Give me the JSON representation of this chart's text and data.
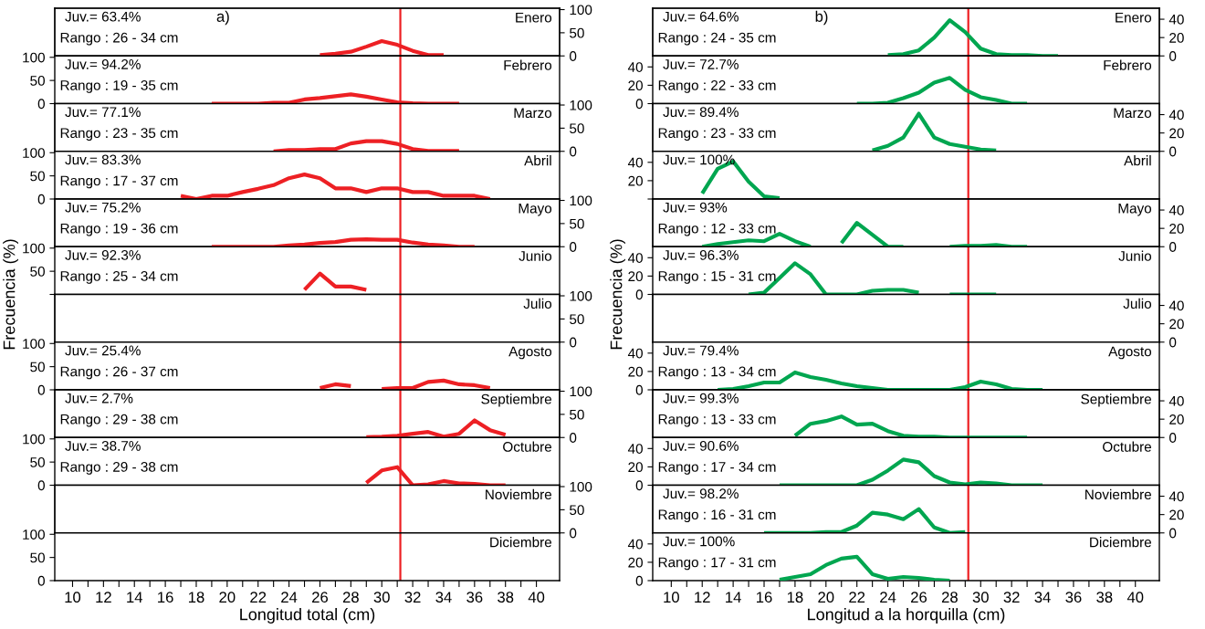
{
  "chart_data": [
    {
      "type": "line",
      "title": "Enero",
      "annotations": [
        "Juv.= 63.4%",
        "Rango : 26 - 34 cm",
        "a)"
      ],
      "x": [
        26,
        27,
        28,
        29,
        30,
        31,
        32,
        33,
        34
      ],
      "series": [
        {
          "color": "#ed2024",
          "axis": "y2",
          "values": [
            2,
            5,
            9,
            20,
            32,
            24,
            11,
            2,
            2
          ]
        }
      ],
      "xlim": [
        8.85,
        41.5
      ],
      "y2lim": [
        0,
        103
      ],
      "y2ticks": [
        0,
        50,
        100
      ],
      "ref_lines": [
        {
          "axis": "x",
          "value": 31.2,
          "color": "#ed2024"
        }
      ],
      "tick_labels": "y"
    },
    {
      "type": "line",
      "title": "Febrero",
      "annotations": [
        "Juv.= 94.2%",
        "Rango : 19 - 35 cm"
      ],
      "x": [
        19,
        20,
        21,
        22,
        23,
        24,
        25,
        26,
        27,
        28,
        29,
        30,
        31,
        32,
        33,
        34,
        35
      ],
      "series": [
        {
          "color": "#ed2024",
          "values": [
            0,
            0,
            0,
            0,
            2,
            2,
            9,
            12,
            16,
            20,
            15,
            9,
            3,
            1,
            0,
            0,
            0
          ]
        }
      ],
      "xlim": [
        8.85,
        41.5
      ],
      "ylim": [
        0,
        103
      ],
      "yticks": [
        0,
        50,
        100
      ],
      "ref_lines": [
        {
          "axis": "x",
          "value": 31.2,
          "color": "#ed2024"
        }
      ],
      "tick_labels": "y"
    },
    {
      "type": "line",
      "title": "Marzo",
      "annotations": [
        "Juv.= 77.1%",
        "Rango : 23 - 35 cm"
      ],
      "x": [
        23,
        24,
        25,
        26,
        27,
        28,
        29,
        30,
        31,
        32,
        33,
        34,
        35
      ],
      "series": [
        {
          "color": "#ed2024",
          "axis": "y2",
          "values": [
            0,
            3,
            3,
            5,
            5,
            17,
            22,
            22,
            16,
            5,
            1,
            1,
            1
          ]
        }
      ],
      "xlim": [
        8.85,
        41.5
      ],
      "y2lim": [
        0,
        103
      ],
      "y2ticks": [
        0,
        50,
        100
      ],
      "ref_lines": [
        {
          "axis": "x",
          "value": 31.2,
          "color": "#ed2024"
        }
      ],
      "tick_labels": "y"
    },
    {
      "type": "line",
      "title": "Abril",
      "annotations": [
        "Juv.= 83.3%",
        "Rango : 17 - 37 cm"
      ],
      "x": [
        17,
        18,
        19,
        20,
        21,
        22,
        23,
        24,
        25,
        26,
        27,
        28,
        29,
        30,
        31,
        32,
        33,
        34,
        35,
        36,
        37
      ],
      "series": [
        {
          "color": "#ed2024",
          "values": [
            7,
            0,
            7,
            7,
            15,
            22,
            30,
            45,
            53,
            45,
            23,
            23,
            15,
            23,
            23,
            15,
            15,
            7,
            7,
            7,
            0
          ]
        }
      ],
      "xlim": [
        8.85,
        41.5
      ],
      "ylim": [
        0,
        103
      ],
      "yticks": [
        0,
        50,
        100
      ],
      "ref_lines": [
        {
          "axis": "x",
          "value": 31.2,
          "color": "#ed2024"
        }
      ],
      "tick_labels": "y"
    },
    {
      "type": "line",
      "title": "Mayo",
      "annotations": [
        "Juv.= 75.2%",
        "Rango : 19 - 36 cm"
      ],
      "x": [
        19,
        20,
        21,
        22,
        23,
        24,
        25,
        26,
        27,
        28,
        29,
        30,
        31,
        32,
        33,
        34,
        35,
        36
      ],
      "series": [
        {
          "color": "#ed2024",
          "axis": "y2",
          "values": [
            0,
            0,
            0,
            0,
            0,
            3,
            5,
            8,
            10,
            15,
            16,
            15,
            15,
            9,
            5,
            3,
            0,
            0
          ]
        }
      ],
      "xlim": [
        8.85,
        41.5
      ],
      "y2lim": [
        0,
        103
      ],
      "y2ticks": [
        0,
        50,
        100
      ],
      "ref_lines": [
        {
          "axis": "x",
          "value": 31.2,
          "color": "#ed2024"
        }
      ],
      "tick_labels": "y"
    },
    {
      "type": "line",
      "title": "Junio",
      "annotations": [
        "Juv.= 92.3%",
        "Rango : 25 - 34 cm"
      ],
      "x": [
        25,
        26,
        27,
        28,
        29
      ],
      "series": [
        {
          "color": "#ed2024",
          "values": [
            10,
            45,
            17,
            17,
            10
          ]
        }
      ],
      "xlim": [
        8.85,
        41.5
      ],
      "ylim": [
        0,
        103
      ],
      "yticks": [
        {
          "value": 0,
          "label": null
        },
        50,
        100
      ],
      "ref_lines": [
        {
          "axis": "x",
          "value": 31.2,
          "color": "#ed2024"
        }
      ],
      "tick_labels": "y"
    },
    {
      "type": "line",
      "title": "Julio",
      "ylabel": "Frecuencia (%)",
      "xlim": [
        8.85,
        41.5
      ],
      "y2lim": [
        0,
        103
      ],
      "y2ticks": [
        0,
        50,
        100
      ],
      "ref_lines": [
        {
          "axis": "x",
          "value": 31.2,
          "color": "#ed2024"
        }
      ],
      "tick_labels": "y"
    },
    {
      "type": "line",
      "title": "Agosto",
      "annotations": [
        "Juv.= 25.4%",
        "Rango : 26 - 37 cm"
      ],
      "x": [
        26,
        27,
        28,
        29,
        30,
        31,
        32,
        33,
        34,
        35,
        36,
        37
      ],
      "series": [
        {
          "color": "#ed2024",
          "values": [
            4,
            12,
            8,
            null,
            2,
            4,
            4,
            17,
            20,
            12,
            10,
            4
          ]
        }
      ],
      "xlim": [
        8.85,
        41.5
      ],
      "ylim": [
        0,
        103
      ],
      "yticks": [
        0,
        50,
        100
      ],
      "ref_lines": [
        {
          "axis": "x",
          "value": 31.2,
          "color": "#ed2024"
        }
      ],
      "tick_labels": "y"
    },
    {
      "type": "line",
      "title": "Septiembre",
      "annotations": [
        "Juv.= 2.7%",
        "Rango : 29 - 38 cm"
      ],
      "x": [
        29,
        30,
        31,
        32,
        33,
        34,
        35,
        36,
        37,
        38
      ],
      "series": [
        {
          "color": "#ed2024",
          "axis": "y2",
          "values": [
            1,
            2,
            4,
            8,
            12,
            2,
            8,
            37,
            16,
            6
          ]
        }
      ],
      "xlim": [
        8.85,
        41.5
      ],
      "y2lim": [
        0,
        103
      ],
      "y2ticks": [
        0,
        50,
        100
      ],
      "ref_lines": [
        {
          "axis": "x",
          "value": 31.2,
          "color": "#ed2024"
        }
      ],
      "tick_labels": "y"
    },
    {
      "type": "line",
      "title": "Octubre",
      "annotations": [
        "Juv.= 38.7%",
        "Rango : 29 - 38 cm"
      ],
      "x": [
        29,
        30,
        31,
        32,
        33,
        34,
        35,
        36,
        37,
        38
      ],
      "series": [
        {
          "color": "#ed2024",
          "values": [
            5,
            32,
            39,
            0,
            2,
            9,
            4,
            3,
            0,
            0
          ]
        }
      ],
      "xlim": [
        8.85,
        41.5
      ],
      "ylim": [
        0,
        103
      ],
      "yticks": [
        0,
        50,
        100
      ],
      "ref_lines": [
        {
          "axis": "x",
          "value": 31.2,
          "color": "#ed2024"
        }
      ],
      "tick_labels": "y"
    },
    {
      "type": "line",
      "title": "Noviembre",
      "xlim": [
        8.85,
        41.5
      ],
      "y2lim": [
        0,
        103
      ],
      "y2ticks": [
        0,
        50,
        100
      ],
      "ref_lines": [
        {
          "axis": "x",
          "value": 31.2,
          "color": "#ed2024"
        }
      ],
      "tick_labels": "y"
    },
    {
      "type": "line",
      "title": "Diciembre",
      "xlabel": "Longitud total (cm)",
      "xlim": [
        8.85,
        41.5
      ],
      "xticks": [
        10,
        {
          "value": 11,
          "label": null
        },
        12,
        {
          "value": 13,
          "label": null
        },
        14,
        {
          "value": 15,
          "label": null
        },
        16,
        {
          "value": 17,
          "label": null
        },
        18,
        {
          "value": 19,
          "label": null
        },
        20,
        {
          "value": 21,
          "label": null
        },
        22,
        {
          "value": 23,
          "label": null
        },
        24,
        {
          "value": 25,
          "label": null
        },
        26,
        {
          "value": 27,
          "label": null
        },
        28,
        {
          "value": 29,
          "label": null
        },
        30,
        {
          "value": 31,
          "label": null
        },
        32,
        {
          "value": 33,
          "label": null
        },
        34,
        {
          "value": 35,
          "label": null
        },
        36,
        {
          "value": 37,
          "label": null
        },
        38,
        {
          "value": 39,
          "label": null
        },
        40
      ],
      "ylim": [
        0,
        103
      ],
      "yticks": [
        0,
        50,
        100
      ],
      "ref_lines": [
        {
          "axis": "x",
          "value": 31.2,
          "color": "#ed2024"
        }
      ]
    },
    {
      "type": "line",
      "title": "Enero",
      "annotations": [
        "Juv.= 64.6%",
        "Rango : 24 - 35 cm",
        "b)"
      ],
      "x": [
        24,
        25,
        26,
        27,
        28,
        29,
        30,
        31,
        32,
        33,
        34,
        35
      ],
      "series": [
        {
          "color": "#00a650",
          "axis": "y2",
          "values": [
            1,
            2,
            6,
            20,
            39,
            26,
            8,
            2,
            1,
            1,
            0,
            0
          ]
        }
      ],
      "xlim": [
        8.8,
        41.55
      ],
      "y2lim": [
        0,
        52
      ],
      "y2ticks": [
        0,
        20,
        40
      ],
      "ref_lines": [
        {
          "axis": "x",
          "value": 29.2,
          "color": "#ed2024"
        }
      ],
      "tick_labels": "y"
    },
    {
      "type": "line",
      "title": "Febrero",
      "annotations": [
        "Juv.= 72.7%",
        "Rango : 22 - 33 cm"
      ],
      "x": [
        22,
        23,
        24,
        25,
        26,
        27,
        28,
        29,
        30,
        31,
        32,
        33
      ],
      "series": [
        {
          "color": "#00a650",
          "values": [
            0,
            0,
            1,
            6,
            12,
            23,
            28,
            15,
            7,
            4,
            0,
            0
          ]
        }
      ],
      "xlim": [
        8.8,
        41.55
      ],
      "ylim": [
        0,
        52
      ],
      "yticks": [
        0,
        20,
        40
      ],
      "ref_lines": [
        {
          "axis": "x",
          "value": 29.2,
          "color": "#ed2024"
        }
      ],
      "tick_labels": "y"
    },
    {
      "type": "line",
      "title": "Marzo",
      "annotations": [
        "Juv.= 89.4%",
        "Rango : 23 - 33 cm"
      ],
      "x": [
        23,
        24,
        25,
        26,
        27,
        28,
        29,
        30,
        31
      ],
      "series": [
        {
          "color": "#00a650",
          "axis": "y2",
          "values": [
            1,
            6,
            15,
            41,
            15,
            8,
            5,
            2,
            1
          ]
        }
      ],
      "xlim": [
        8.8,
        41.55
      ],
      "y2lim": [
        0,
        52
      ],
      "y2ticks": [
        0,
        20,
        40
      ],
      "ref_lines": [
        {
          "axis": "x",
          "value": 29.2,
          "color": "#ed2024"
        }
      ],
      "tick_labels": "y"
    },
    {
      "type": "line",
      "title": "Abril",
      "annotations": [
        "Juv.= 100%"
      ],
      "x": [
        12,
        13,
        14,
        15,
        16,
        17
      ],
      "series": [
        {
          "color": "#00a650",
          "values": [
            6,
            33,
            41,
            19,
            3,
            1
          ]
        }
      ],
      "xlim": [
        8.8,
        41.55
      ],
      "ylim": [
        0,
        52
      ],
      "yticks": [
        {
          "value": 0,
          "label": null
        },
        20,
        40
      ],
      "ref_lines": [
        {
          "axis": "x",
          "value": 29.2,
          "color": "#ed2024"
        }
      ],
      "tick_labels": "y"
    },
    {
      "type": "line",
      "title": "Mayo",
      "annotations": [
        "Juv.= 93%",
        "Rango : 12 - 33 cm"
      ],
      "x": [
        12,
        13,
        14,
        15,
        16,
        17,
        18,
        19,
        20,
        21,
        22,
        23,
        24,
        25,
        26,
        27,
        28,
        29,
        30,
        31,
        32,
        33
      ],
      "series": [
        {
          "color": "#00a650",
          "axis": "y2",
          "values": [
            0,
            3,
            5,
            7,
            6,
            14,
            6,
            0,
            null,
            4,
            26,
            13,
            0,
            0,
            null,
            null,
            0,
            1,
            1,
            2,
            0,
            0
          ]
        }
      ],
      "xlim": [
        8.8,
        41.55
      ],
      "y2lim": [
        0,
        52
      ],
      "y2ticks": [
        0,
        20,
        40
      ],
      "ref_lines": [
        {
          "axis": "x",
          "value": 29.2,
          "color": "#ed2024"
        }
      ],
      "tick_labels": "y"
    },
    {
      "type": "line",
      "title": "Junio",
      "annotations": [
        "Juv.= 96.3%",
        "Rango : 15 - 31 cm"
      ],
      "x": [
        15,
        16,
        17,
        18,
        19,
        20,
        21,
        22,
        23,
        24,
        25,
        26,
        27,
        28,
        29,
        30,
        31
      ],
      "series": [
        {
          "color": "#00a650",
          "values": [
            0,
            2,
            18,
            34,
            22,
            0,
            0,
            0,
            4,
            5,
            5,
            2,
            null,
            0,
            0,
            0,
            0
          ]
        }
      ],
      "xlim": [
        8.8,
        41.55
      ],
      "ylim": [
        0,
        52
      ],
      "yticks": [
        0,
        20,
        40
      ],
      "ref_lines": [
        {
          "axis": "x",
          "value": 29.2,
          "color": "#ed2024"
        }
      ],
      "tick_labels": "y"
    },
    {
      "type": "line",
      "title": "Julio",
      "ylabel": "Frecuencia (%)",
      "xlim": [
        8.8,
        41.55
      ],
      "y2lim": [
        0,
        52
      ],
      "y2ticks": [
        0,
        20,
        40
      ],
      "ref_lines": [
        {
          "axis": "x",
          "value": 29.2,
          "color": "#ed2024"
        }
      ],
      "tick_labels": "y"
    },
    {
      "type": "line",
      "title": "Agosto",
      "annotations": [
        "Juv.= 79.4%",
        "Rango : 13 - 34 cm"
      ],
      "x": [
        13,
        14,
        15,
        16,
        17,
        18,
        19,
        20,
        21,
        22,
        23,
        24,
        25,
        26,
        27,
        28,
        29,
        30,
        31,
        32,
        33,
        34
      ],
      "series": [
        {
          "color": "#00a650",
          "values": [
            0,
            1,
            4,
            8,
            8,
            19,
            14,
            11,
            7,
            4,
            2,
            0,
            0,
            0,
            0,
            0,
            3,
            9,
            6,
            1,
            0,
            0
          ]
        }
      ],
      "xlim": [
        8.8,
        41.55
      ],
      "ylim": [
        0,
        52
      ],
      "yticks": [
        0,
        20,
        40
      ],
      "ref_lines": [
        {
          "axis": "x",
          "value": 29.2,
          "color": "#ed2024"
        }
      ],
      "tick_labels": "y"
    },
    {
      "type": "line",
      "title": "Septiembre",
      "annotations": [
        "Juv.= 99.3%",
        "Rango : 13 - 33 cm"
      ],
      "x": [
        18,
        19,
        20,
        21,
        22,
        23,
        24,
        25,
        26,
        27,
        28,
        29,
        30,
        31,
        32,
        33
      ],
      "series": [
        {
          "color": "#00a650",
          "axis": "y2",
          "values": [
            2,
            15,
            18,
            23,
            14,
            15,
            7,
            2,
            1,
            1,
            0,
            0,
            0,
            0,
            0,
            0
          ]
        }
      ],
      "xlim": [
        8.8,
        41.55
      ],
      "y2lim": [
        0,
        52
      ],
      "y2ticks": [
        0,
        20,
        40
      ],
      "ref_lines": [
        {
          "axis": "x",
          "value": 29.2,
          "color": "#ed2024"
        }
      ],
      "tick_labels": "y"
    },
    {
      "type": "line",
      "title": "Octubre",
      "annotations": [
        "Juv.= 90.6%",
        "Rango : 17 - 34 cm"
      ],
      "x": [
        17,
        18,
        19,
        20,
        21,
        22,
        23,
        24,
        25,
        26,
        27,
        28,
        29,
        30,
        31,
        32,
        33,
        34
      ],
      "series": [
        {
          "color": "#00a650",
          "values": [
            0,
            0,
            0,
            0,
            0,
            0,
            6,
            16,
            28,
            25,
            10,
            3,
            1,
            3,
            2,
            0,
            0,
            0
          ]
        }
      ],
      "xlim": [
        8.8,
        41.55
      ],
      "ylim": [
        0,
        52
      ],
      "yticks": [
        0,
        20,
        40
      ],
      "ref_lines": [
        {
          "axis": "x",
          "value": 29.2,
          "color": "#ed2024"
        }
      ],
      "tick_labels": "y"
    },
    {
      "type": "line",
      "title": "Noviembre",
      "annotations": [
        "Juv.= 98.2%",
        "Rango : 16 - 31 cm"
      ],
      "x": [
        16,
        17,
        18,
        19,
        20,
        21,
        22,
        23,
        24,
        25,
        26,
        27,
        28,
        29
      ],
      "series": [
        {
          "color": "#00a650",
          "axis": "y2",
          "values": [
            0,
            0,
            0,
            0,
            1,
            1,
            8,
            22,
            20,
            15,
            26,
            6,
            0,
            1
          ]
        }
      ],
      "xlim": [
        8.8,
        41.55
      ],
      "y2lim": [
        0,
        52
      ],
      "y2ticks": [
        0,
        20,
        40
      ],
      "ref_lines": [
        {
          "axis": "x",
          "value": 29.2,
          "color": "#ed2024"
        }
      ],
      "tick_labels": "y"
    },
    {
      "type": "line",
      "title": "Diciembre",
      "annotations": [
        "Juv.= 100%",
        "Rango : 17 - 31 cm"
      ],
      "xlabel": "Longitud a la horquilla (cm)",
      "x": [
        17,
        18,
        19,
        20,
        21,
        22,
        23,
        24,
        25,
        26,
        27,
        28
      ],
      "series": [
        {
          "color": "#00a650",
          "values": [
            1,
            4,
            7,
            17,
            24,
            26,
            7,
            2,
            4,
            3,
            1,
            0
          ]
        }
      ],
      "xlim": [
        8.8,
        41.55
      ],
      "xticks": [
        10,
        {
          "value": 11,
          "label": null
        },
        12,
        {
          "value": 13,
          "label": null
        },
        14,
        {
          "value": 15,
          "label": null
        },
        16,
        {
          "value": 17,
          "label": null
        },
        18,
        {
          "value": 19,
          "label": null
        },
        20,
        {
          "value": 21,
          "label": null
        },
        22,
        {
          "value": 23,
          "label": null
        },
        24,
        {
          "value": 25,
          "label": null
        },
        26,
        {
          "value": 27,
          "label": null
        },
        28,
        {
          "value": 29,
          "label": null
        },
        30,
        {
          "value": 31,
          "label": null
        },
        32,
        {
          "value": 33,
          "label": null
        },
        34,
        {
          "value": 35,
          "label": null
        },
        36,
        {
          "value": 37,
          "label": null
        },
        38,
        {
          "value": 39,
          "label": null
        },
        40
      ],
      "ylim": [
        0,
        52
      ],
      "yticks": [
        0,
        20,
        40
      ],
      "ref_lines": [
        {
          "axis": "x",
          "value": 29.2,
          "color": "#ed2024"
        }
      ]
    }
  ]
}
